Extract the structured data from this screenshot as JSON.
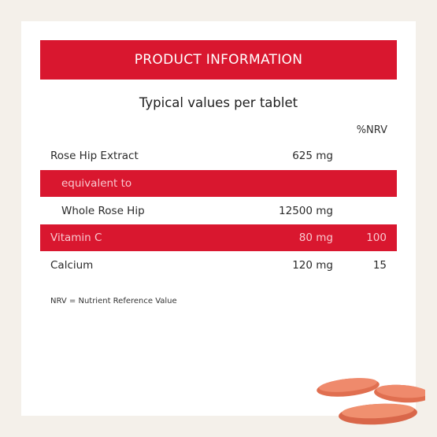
{
  "header": {
    "title": "PRODUCT INFORMATION"
  },
  "subtitle": "Typical values per tablet",
  "table": {
    "nrv_header": "%NRV",
    "rows": [
      {
        "name": "Rose Hip Extract",
        "amount": "625 mg"
      },
      {
        "name": "equivalent to"
      },
      {
        "name": "Whole Rose Hip",
        "amount": "12500 mg"
      },
      {
        "name": "Vitamin C",
        "amount": "80 mg",
        "nrv": 100
      },
      {
        "name": "Calcium",
        "amount": "120 mg",
        "nrv": 15
      }
    ]
  },
  "footnote": "NRV = Nutrient Reference Value"
}
